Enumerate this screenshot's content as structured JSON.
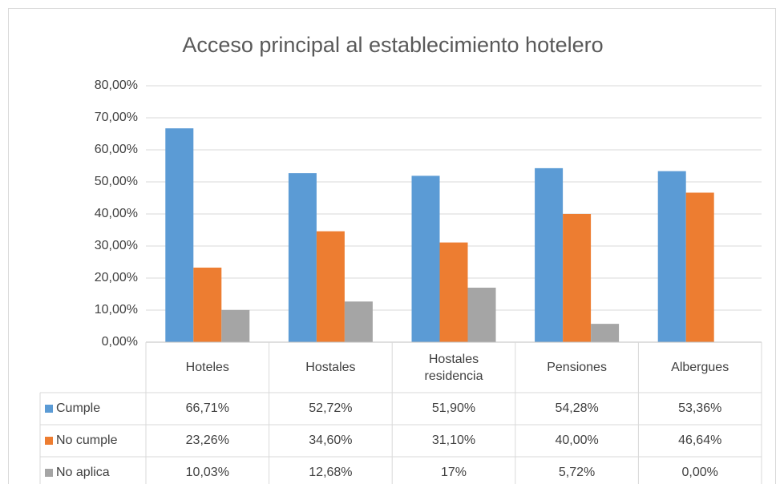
{
  "chart_data": {
    "type": "bar",
    "title": "Acceso principal al establecimiento hotelero",
    "categories": [
      "Hoteles",
      "Hostales",
      "Hostales residencia",
      "Pensiones",
      "Albergues"
    ],
    "series": [
      {
        "name": "Cumple",
        "color": "#5b9bd5",
        "values": [
          66.71,
          52.72,
          51.9,
          54.28,
          53.36
        ],
        "value_labels": [
          "66,71%",
          "52,72%",
          "51,90%",
          "54,28%",
          "53,36%"
        ]
      },
      {
        "name": "No cumple",
        "color": "#ed7d31",
        "values": [
          23.26,
          34.6,
          31.1,
          40.0,
          46.64
        ],
        "value_labels": [
          "23,26%",
          "34,60%",
          "31,10%",
          "40,00%",
          "46,64%"
        ]
      },
      {
        "name": "No aplica",
        "color": "#a5a5a5",
        "values": [
          10.03,
          12.68,
          17,
          5.72,
          0.0
        ],
        "value_labels": [
          "10,03%",
          "12,68%",
          "17%",
          "5,72%",
          "0,00%"
        ]
      }
    ],
    "ylim": [
      0,
      80
    ],
    "yticks": [
      {
        "value": 0,
        "label": "0,00%"
      },
      {
        "value": 10,
        "label": "10,00%"
      },
      {
        "value": 20,
        "label": "20,00%"
      },
      {
        "value": 30,
        "label": "30,00%"
      },
      {
        "value": 40,
        "label": "40,00%"
      },
      {
        "value": 50,
        "label": "50,00%"
      },
      {
        "value": 60,
        "label": "60,00%"
      },
      {
        "value": 70,
        "label": "70,00%"
      },
      {
        "value": 80,
        "label": "80,00%"
      }
    ],
    "grid": true
  }
}
